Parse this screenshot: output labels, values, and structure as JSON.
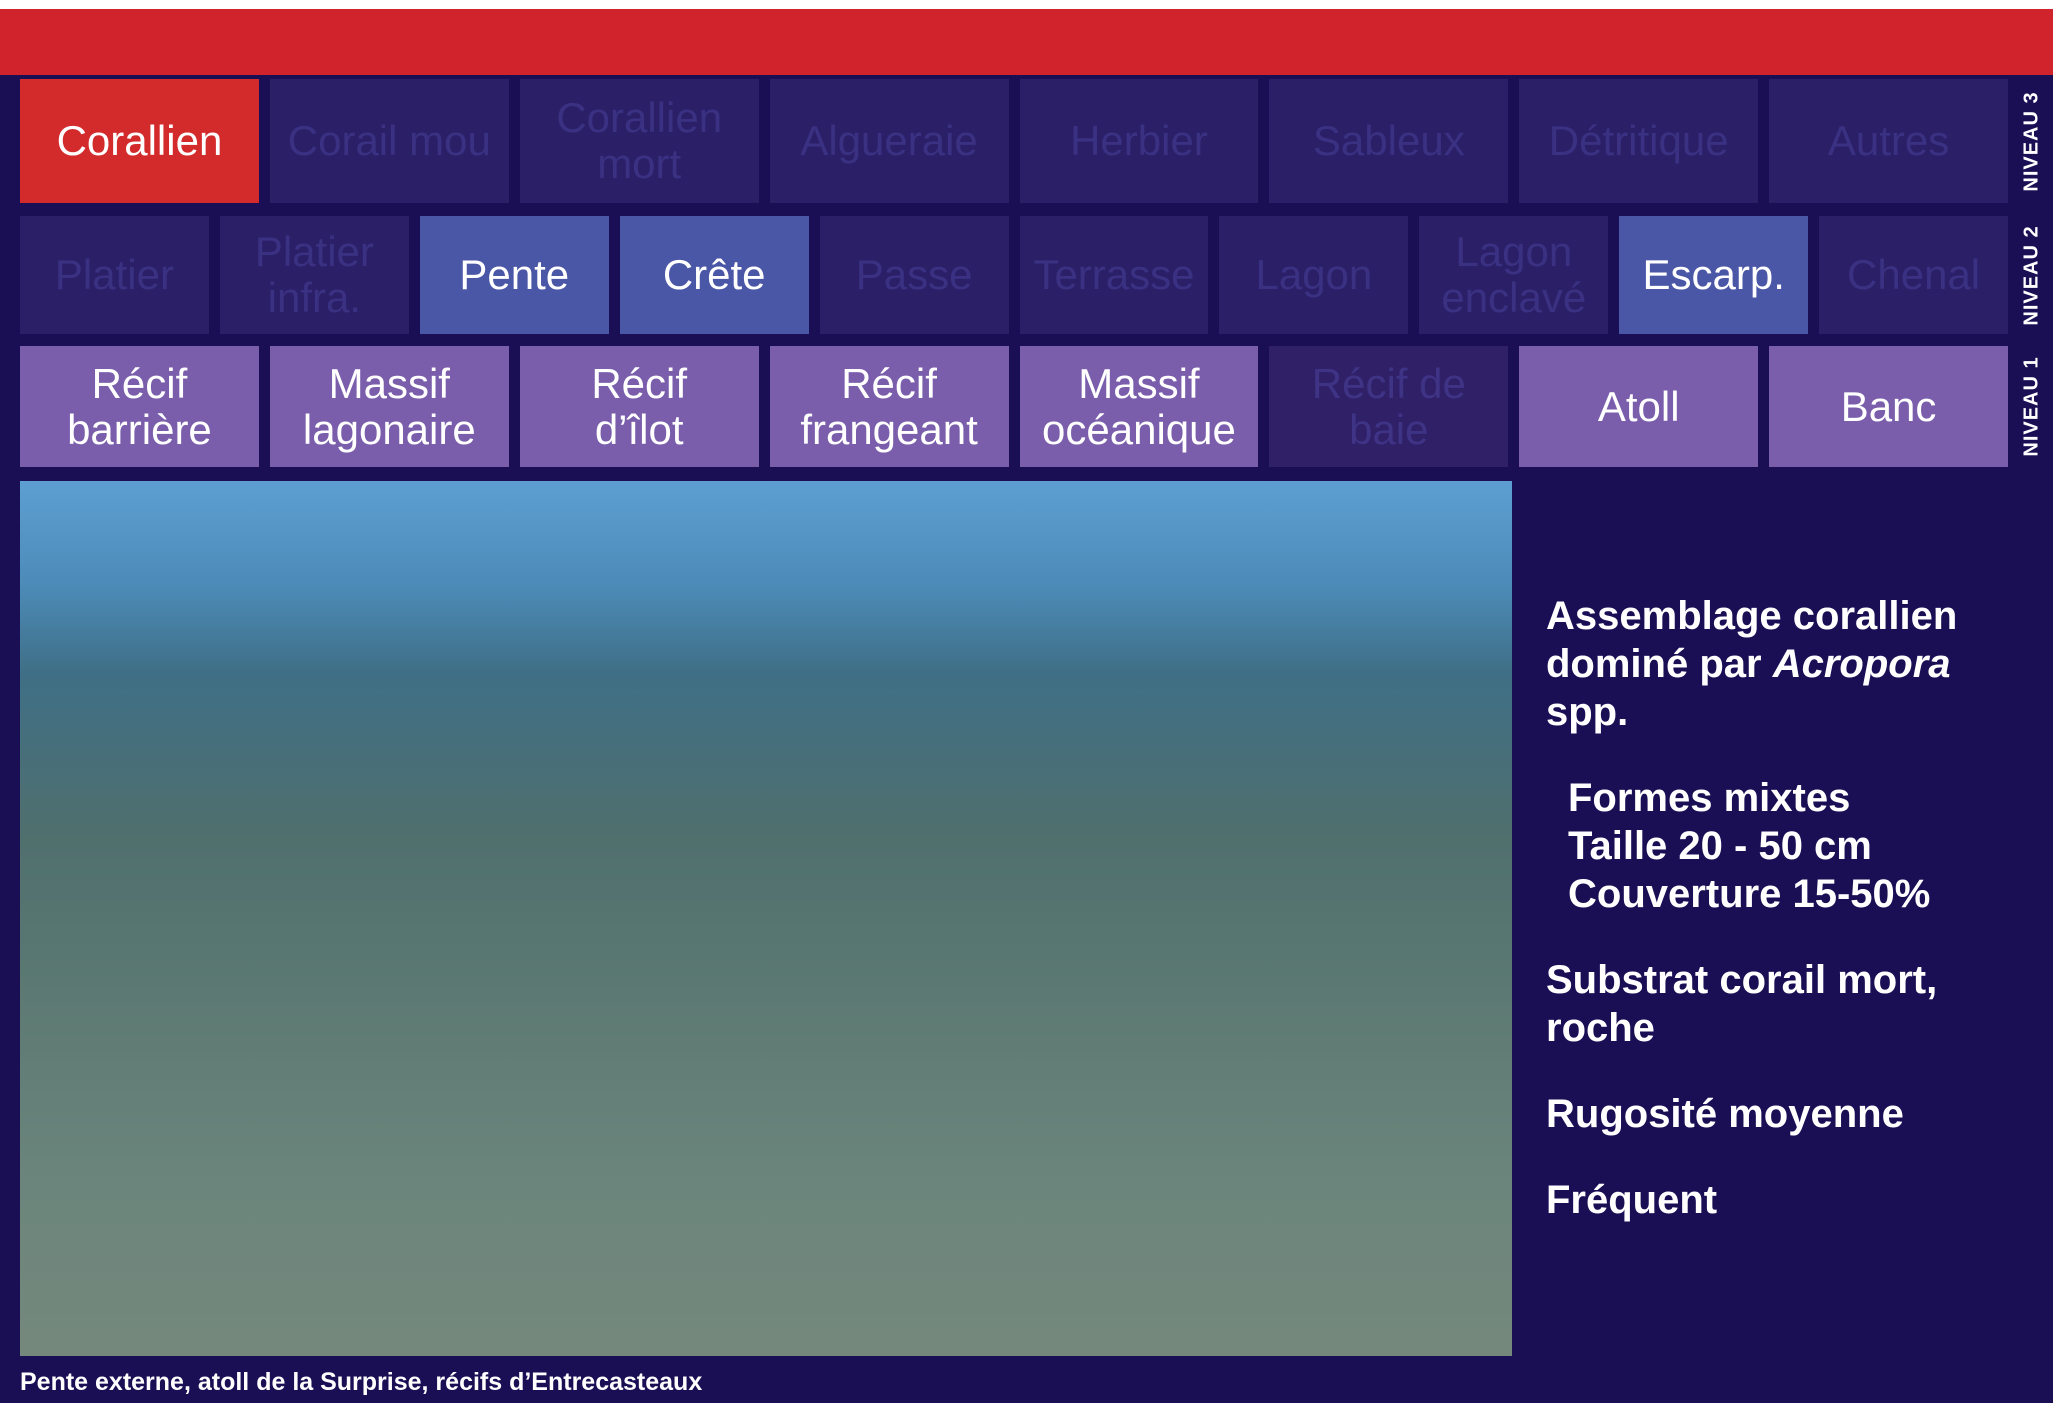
{
  "levels": [
    {
      "name": "NIVEAU 3",
      "items": [
        {
          "label": "Corallien",
          "selected": true
        },
        {
          "label": "Corail mou",
          "selected": false
        },
        {
          "label": "Corallien\nmort",
          "selected": false
        },
        {
          "label": "Algueraie",
          "selected": false
        },
        {
          "label": "Herbier",
          "selected": false
        },
        {
          "label": "Sableux",
          "selected": false
        },
        {
          "label": "Détritique",
          "selected": false
        },
        {
          "label": "Autres",
          "selected": false
        }
      ]
    },
    {
      "name": "NIVEAU 2",
      "items": [
        {
          "label": "Platier",
          "selected": false
        },
        {
          "label": "Platier\ninfra.",
          "selected": false
        },
        {
          "label": "Pente",
          "selected": true
        },
        {
          "label": "Crête",
          "selected": true
        },
        {
          "label": "Passe",
          "selected": false
        },
        {
          "label": "Terrasse",
          "selected": false
        },
        {
          "label": "Lagon",
          "selected": false
        },
        {
          "label": "Lagon\nenclavé",
          "selected": false
        },
        {
          "label": "Escarp.",
          "selected": true
        },
        {
          "label": "Chenal",
          "selected": false
        }
      ]
    },
    {
      "name": "NIVEAU 1",
      "items": [
        {
          "label": "Récif\nbarrière",
          "selected": true
        },
        {
          "label": "Massif\nlagonaire",
          "selected": true
        },
        {
          "label": "Récif\nd’îlot",
          "selected": true
        },
        {
          "label": "Récif\nfrangeant",
          "selected": true
        },
        {
          "label": "Massif\nocéanique",
          "selected": true
        },
        {
          "label": "Récif de\nbaie",
          "selected": false
        },
        {
          "label": "Atoll",
          "selected": true
        },
        {
          "label": "Banc",
          "selected": true
        }
      ]
    }
  ],
  "info": {
    "heading": {
      "before": "Assemblage corallien dominé par",
      "italic": "Acropora",
      "after": "spp."
    },
    "details": [
      "Formes mixtes",
      "Taille 20 - 50 cm",
      "Couverture 15-50%"
    ],
    "substrate": "Substrat corail mort, roche",
    "rugosity": "Rugosité moyenne",
    "frequency": "Fréquent"
  },
  "caption": "Pente externe, atoll de la Surprise, récifs d’Entrecasteaux"
}
